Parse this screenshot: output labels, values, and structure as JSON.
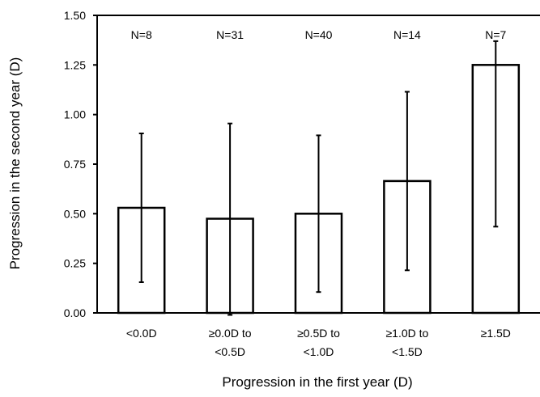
{
  "chart_data": {
    "type": "bar",
    "xlabel": "Progression in the first year (D)",
    "ylabel": "Progression in the second year (D)",
    "ylim": [
      0,
      1.5
    ],
    "y_ticks": [
      "0.00",
      "0.25",
      "0.50",
      "0.75",
      "1.00",
      "1.25",
      "1.50"
    ],
    "y_tick_values": [
      0,
      0.25,
      0.5,
      0.75,
      1.0,
      1.25,
      1.5
    ],
    "categories": [
      [
        "<0.0D"
      ],
      [
        "≥0.0D to",
        "<0.5D"
      ],
      [
        "≥0.5D to",
        "<1.0D"
      ],
      [
        "≥1.0D to",
        "<1.5D"
      ],
      [
        "≥1.5D"
      ]
    ],
    "values": [
      0.53,
      0.475,
      0.5,
      0.665,
      1.25
    ],
    "error_low": [
      0.155,
      -0.01,
      0.105,
      0.215,
      0.435
    ],
    "error_high": [
      0.905,
      0.955,
      0.895,
      1.115,
      1.37
    ],
    "n_labels": [
      "N=8",
      "N=31",
      "N=40",
      "N=14",
      "N=7"
    ],
    "bar_fill": "#ffffff",
    "bar_stroke": "#000000",
    "grid": false
  }
}
